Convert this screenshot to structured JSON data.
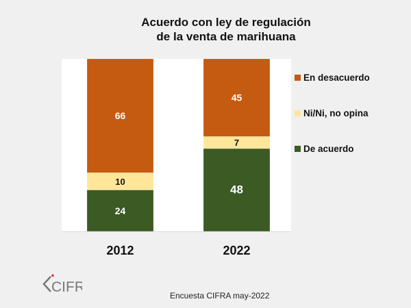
{
  "chart_data": {
    "type": "bar",
    "stacked": true,
    "title": [
      "Acuerdo con ley de regulación",
      "de la venta de marihuana"
    ],
    "categories": [
      "2012",
      "2022"
    ],
    "series": [
      {
        "name": "De acuerdo",
        "values": [
          24,
          48
        ],
        "color": "#3b5a24",
        "label_color": "#ffffff"
      },
      {
        "name": "Ni/Ni, no opina",
        "values": [
          10,
          7
        ],
        "color": "#ffe699",
        "label_color": "#111111"
      },
      {
        "name": "En desacuerdo",
        "values": [
          66,
          45
        ],
        "color": "#c55a11",
        "label_color": "#ffffff"
      }
    ],
    "legend_order": [
      "En desacuerdo",
      "Ni/Ni, no opina",
      "De acuerdo"
    ],
    "legend_position": "right",
    "ylim": [
      0,
      100
    ],
    "grid": false,
    "xlabel": "",
    "ylabel": ""
  },
  "footer": {
    "logo_text": "CIFRA",
    "source": "Encuesta CIFRA may-2022"
  }
}
